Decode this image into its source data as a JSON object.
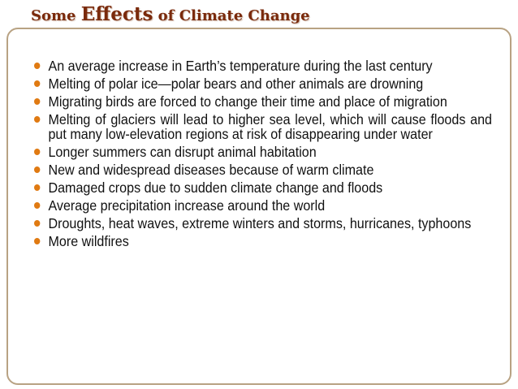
{
  "title": {
    "part1": "Some ",
    "part2": "Effects",
    "part3": " of Climate Change"
  },
  "bullets": [
    "An average increase in Earth’s temperature during the last century",
    "Melting of polar ice—polar bears and other animals are drowning",
    "Migrating birds are forced to change their time and place of migration",
    "Melting of glaciers will lead to higher sea level, which will cause floods and put many low-elevation regions at risk of disappearing under water",
    "Longer summers can disrupt animal habitation",
    "New and widespread diseases because of warm climate",
    "Damaged crops due to sudden climate change and floods",
    "Average precipitation increase around the world",
    "Droughts, heat waves, extreme winters and storms, hurricanes, typhoons",
    "More wildfires"
  ],
  "colors": {
    "title": "#7a2a0c",
    "bullet": "#e07a12",
    "frame": "#b8a283",
    "text": "#111111"
  }
}
